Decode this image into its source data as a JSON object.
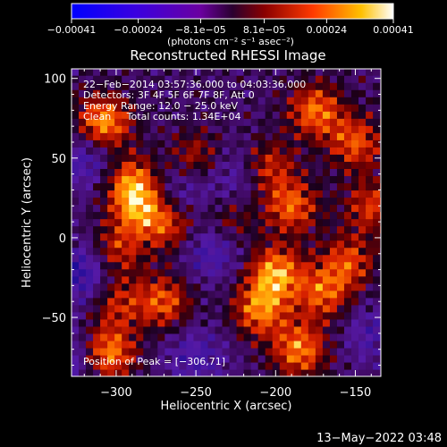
{
  "chart_data": {
    "type": "heatmap",
    "title": "Reconstructed RHESSI Image",
    "xlabel": "Heliocentric X (arcsec)",
    "ylabel": "Heliocentric Y (arcsec)",
    "xlim": [
      -328,
      -134
    ],
    "ylim": [
      -87,
      106
    ],
    "x_ticks": [
      -300,
      -250,
      -200,
      -150
    ],
    "x_tick_labels": [
      "−300",
      "−250",
      "−200",
      "−150"
    ],
    "y_ticks": [
      100,
      50,
      0,
      -50
    ],
    "y_tick_labels": [
      "100",
      "50",
      "0",
      "−50"
    ],
    "colorbar": {
      "min": -0.00041,
      "max": 0.00041,
      "ticks": [
        -0.00041,
        -0.00024,
        -8.1e-05,
        8.1e-05,
        0.00024,
        0.00041
      ],
      "tick_labels": [
        "−0.00041",
        "−0.00024",
        "−8.1e−05",
        "8.1e−05",
        "0.00024",
        "0.00041"
      ],
      "unit_label": "(photons cm⁻² s⁻¹ asec⁻²)"
    },
    "annotations": [
      "22−Feb−2014 03:57:36.000 to 04:03:36.000",
      "Detectors: 3F 4F 5F 6F 7F 8F, Att 0",
      "Energy Range: 12.0 − 25.0 keV",
      "Clean     Total counts: 1.34E+04"
    ],
    "peak_label": "Position of Peak = [−306,71]",
    "peak": [
      -306,
      71
    ],
    "colormap": "rhessi-hot",
    "hotspots": [
      {
        "x": -308,
        "y": 72,
        "v": 1.0
      },
      {
        "x": -290,
        "y": 35,
        "v": 0.85
      },
      {
        "x": -285,
        "y": 18,
        "v": 0.75
      },
      {
        "x": -265,
        "y": 8,
        "v": 0.65
      },
      {
        "x": -300,
        "y": -8,
        "v": 0.6
      },
      {
        "x": -305,
        "y": -72,
        "v": 0.9
      },
      {
        "x": -270,
        "y": -40,
        "v": 0.72
      },
      {
        "x": -300,
        "y": -40,
        "v": 0.55
      },
      {
        "x": -200,
        "y": -22,
        "v": 0.95
      },
      {
        "x": -210,
        "y": -45,
        "v": 0.82
      },
      {
        "x": -185,
        "y": -70,
        "v": 0.85
      },
      {
        "x": -170,
        "y": -35,
        "v": 0.7
      },
      {
        "x": -190,
        "y": 20,
        "v": 0.75
      },
      {
        "x": -205,
        "y": 45,
        "v": 0.6
      },
      {
        "x": -175,
        "y": 80,
        "v": 0.8
      },
      {
        "x": -150,
        "y": 60,
        "v": 0.7
      },
      {
        "x": -140,
        "y": 20,
        "v": 0.6
      },
      {
        "x": -250,
        "y": 50,
        "v": 0.55
      },
      {
        "x": -155,
        "y": -15,
        "v": 0.65
      },
      {
        "x": -230,
        "y": 10,
        "v": 0.5
      }
    ],
    "coldspots": [
      {
        "x": -240,
        "y": -5,
        "v": 0.8
      },
      {
        "x": -260,
        "y": 30,
        "v": 0.6
      },
      {
        "x": -318,
        "y": 50,
        "v": 0.7
      },
      {
        "x": -320,
        "y": -22,
        "v": 0.9
      },
      {
        "x": -330,
        "y": -75,
        "v": 0.7
      },
      {
        "x": -225,
        "y": 40,
        "v": 0.55
      },
      {
        "x": -140,
        "y": -60,
        "v": 0.5
      },
      {
        "x": -250,
        "y": -75,
        "v": 0.6
      }
    ]
  },
  "footer": {
    "timestamp": "13−May−2022 03:48"
  },
  "colors": {
    "background": "#000000",
    "foreground": "#ffffff"
  }
}
